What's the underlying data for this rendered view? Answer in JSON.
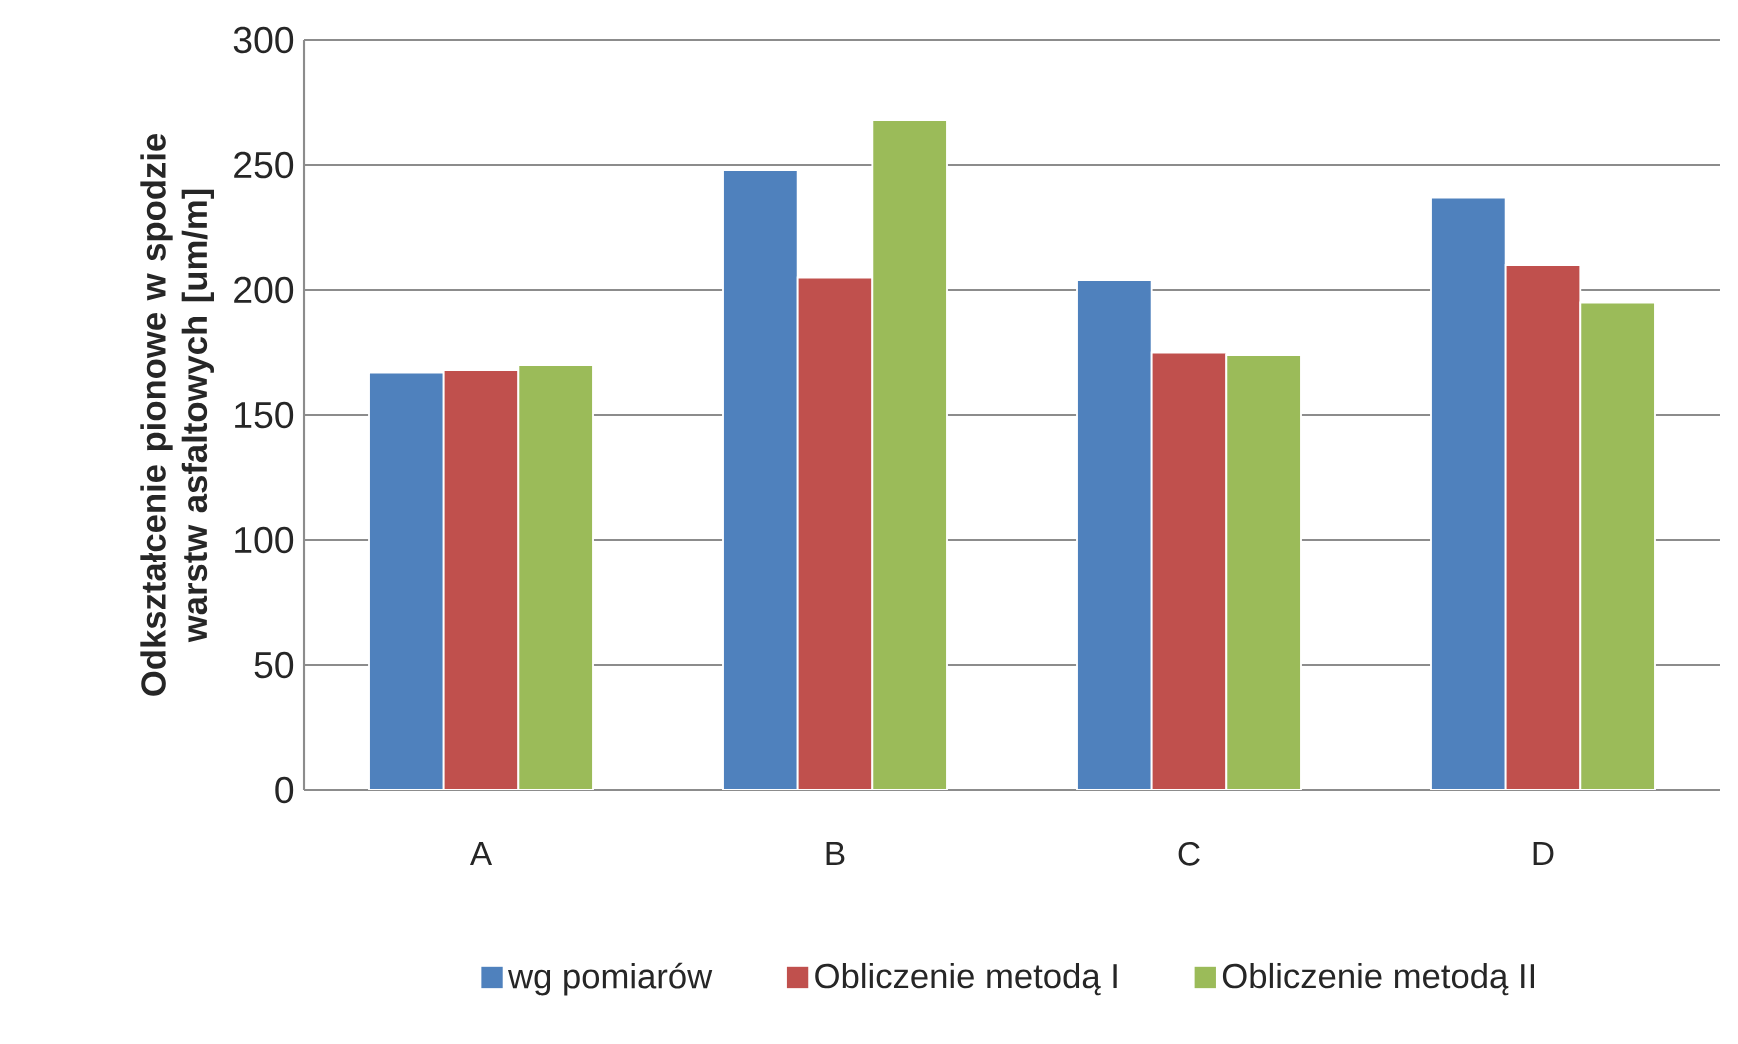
{
  "chart_data": {
    "type": "bar",
    "ylabel": "Odkształcenie pionowe w spodzie warstw asfaltowych [um/m]",
    "categories": [
      "A",
      "B",
      "C",
      "D"
    ],
    "series": [
      {
        "name": "wg pomiarów",
        "color": "#4f81bd",
        "values": [
          167,
          248,
          204,
          237
        ]
      },
      {
        "name": "Obliczenie metodą I",
        "color": "#c0504d",
        "values": [
          168,
          205,
          175,
          210
        ]
      },
      {
        "name": "Obliczenie metodą II",
        "color": "#9bbb59",
        "values": [
          170,
          268,
          174,
          195
        ]
      }
    ],
    "ylim": [
      0,
      300
    ],
    "yticks": [
      0,
      50,
      100,
      150,
      200,
      250,
      300
    ],
    "grid": "y",
    "legend": "bottom"
  }
}
